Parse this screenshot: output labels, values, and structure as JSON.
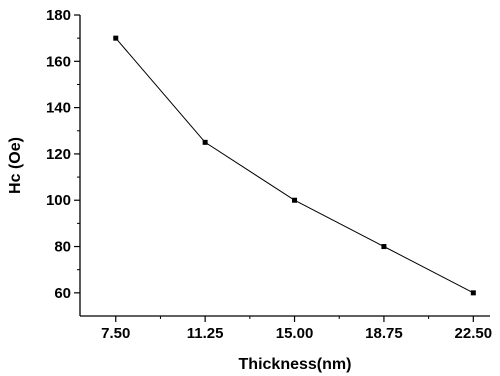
{
  "chart_data": {
    "type": "line",
    "title": "",
    "xlabel": "Thickness(nm)",
    "ylabel": "Hc (Oe)",
    "x": [
      7.5,
      11.25,
      15.0,
      18.75,
      22.5
    ],
    "x_tick_labels": [
      "7.50",
      "11.25",
      "15.00",
      "18.75",
      "22.50"
    ],
    "series": [
      {
        "values": [
          170,
          125,
          100,
          80,
          60
        ]
      }
    ],
    "xlim": [
      6.0,
      23.2
    ],
    "ylim": [
      50,
      180
    ],
    "y_ticks": [
      60,
      80,
      100,
      120,
      140,
      160,
      180
    ],
    "grid": false,
    "legend": "none",
    "colors": {
      "line": "#000000",
      "axis": "#000000"
    },
    "marker": "square"
  }
}
